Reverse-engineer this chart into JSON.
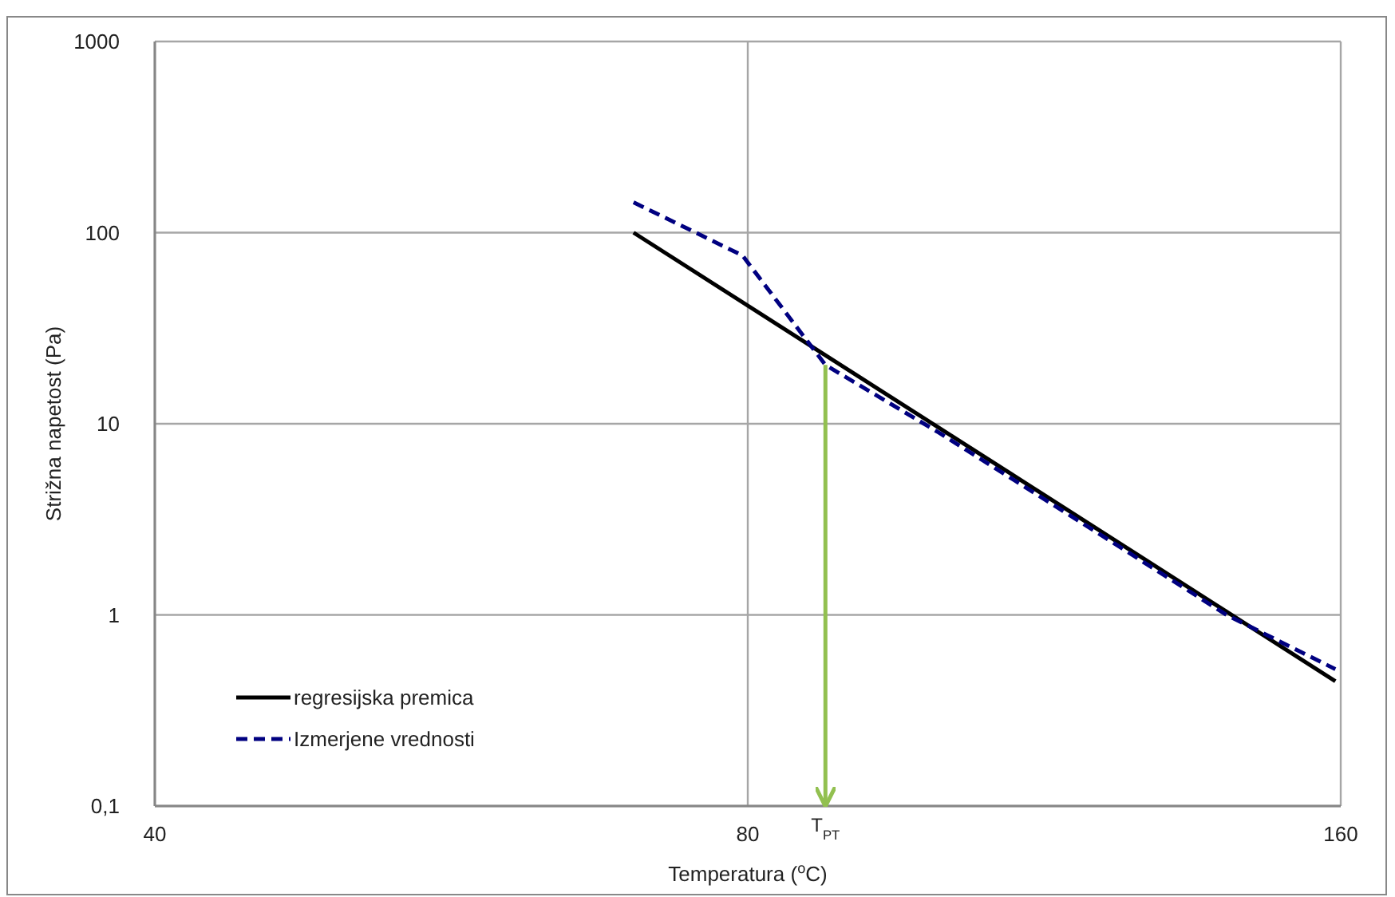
{
  "chart_data": {
    "type": "line",
    "xlabel": "Temperatura ($^{o}$C)",
    "ylabel": "Strižna napetost (Pa)",
    "log": "xy",
    "grid": true,
    "legend": "bottom left",
    "xlim": [
      40,
      160
    ],
    "xticks": [
      40,
      80,
      160
    ],
    "ylim": [
      0.1,
      1000
    ],
    "yticks": [
      {
        "value": 0.1,
        "label": "0,1"
      },
      1,
      10,
      100,
      1000
    ],
    "series": [
      {
        "name": "regresijska premica",
        "color": "#000000",
        "line_style": "solid",
        "x": [
          70,
          159
        ],
        "values": [
          100,
          0.45
        ]
      },
      {
        "name": "Izmerjene vrednosti",
        "color": "#000080",
        "line_style": "dashed",
        "x": [
          70,
          79.5,
          87.6,
          100,
          120,
          140,
          159
        ],
        "values": [
          144,
          76,
          20.3,
          9,
          2.75,
          1.0,
          0.52
        ]
      }
    ],
    "ref_lines": [
      {
        "axis": "x",
        "value": 87.6,
        "label": "T$_{PT}$",
        "color": "#92c050"
      }
    ]
  }
}
